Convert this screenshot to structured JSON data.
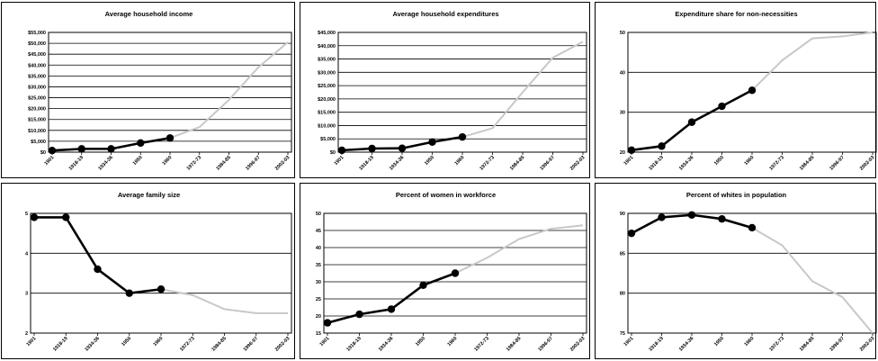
{
  "chart_data": [
    {
      "type": "line",
      "title": "Average household income",
      "categories": [
        "1901",
        "1918-19",
        "1934-36",
        "1950",
        "1960",
        "1972-73",
        "1984-85",
        "1996-97",
        "2002-03"
      ],
      "series": [
        {
          "values": [
            750,
            1500,
            1500,
            4200,
            6500,
            11500,
            24000,
            39000,
            50500
          ]
        }
      ],
      "ylim": [
        0,
        55000
      ],
      "yticks": [
        "$0",
        "$5,000",
        "$10,000",
        "$15,000",
        "$20,000",
        "$25,000",
        "$30,000",
        "$35,000",
        "$40,000",
        "$45,000",
        "$50,000",
        "$55,000"
      ],
      "dark_points": 5,
      "grid": true
    },
    {
      "type": "line",
      "title": "Average household expenditures",
      "categories": [
        "1901",
        "1918-19",
        "1934-36",
        "1950",
        "1960",
        "1972-73",
        "1984-85",
        "1996-97",
        "2002-03"
      ],
      "series": [
        {
          "values": [
            700,
            1350,
            1450,
            3800,
            5700,
            9000,
            22500,
            35500,
            41500
          ]
        }
      ],
      "ylim": [
        0,
        45000
      ],
      "yticks": [
        "$0",
        "$5,000",
        "$10,000",
        "$15,000",
        "$20,000",
        "$25,000",
        "$30,000",
        "$35,000",
        "$40,000",
        "$45,000"
      ],
      "dark_points": 5,
      "grid": true
    },
    {
      "type": "line",
      "title": "Expenditure share for non-necessities",
      "categories": [
        "1901",
        "1918-19",
        "1934-36",
        "1950",
        "1960",
        "1972-73",
        "1984-85",
        "1996-97",
        "2002-03"
      ],
      "series": [
        {
          "values": [
            20.5,
            21.5,
            27.5,
            31.5,
            35.5,
            43,
            48.5,
            49,
            50
          ]
        }
      ],
      "ylim": [
        20,
        50
      ],
      "yticks": [
        "20",
        "30",
        "40",
        "50"
      ],
      "dark_points": 5,
      "grid": true
    },
    {
      "type": "line",
      "title": "Average family size",
      "categories": [
        "1901",
        "1918-19",
        "1934-36",
        "1950",
        "1960",
        "1972-73",
        "1984-85",
        "1996-97",
        "2002-03"
      ],
      "series": [
        {
          "values": [
            4.9,
            4.9,
            3.6,
            3.0,
            3.1,
            2.95,
            2.6,
            2.5,
            2.5
          ]
        }
      ],
      "ylim": [
        2,
        5
      ],
      "yticks": [
        "2",
        "3",
        "4",
        "5"
      ],
      "dark_points": 5,
      "grid": true
    },
    {
      "type": "line",
      "title": "Percent of women in workforce",
      "categories": [
        "1901",
        "1918-19",
        "1934-36",
        "1950",
        "1960",
        "1972-73",
        "1984-85",
        "1996-97",
        "2002-03"
      ],
      "series": [
        {
          "values": [
            18,
            20.5,
            22,
            29,
            32.5,
            37,
            42.5,
            45.5,
            46.5
          ]
        }
      ],
      "ylim": [
        15,
        50
      ],
      "yticks": [
        "15",
        "20",
        "25",
        "30",
        "35",
        "40",
        "45",
        "50"
      ],
      "dark_points": 5,
      "grid": true
    },
    {
      "type": "line",
      "title": "Percent of whites in population",
      "categories": [
        "1901",
        "1918-19",
        "1934-36",
        "1950",
        "1960",
        "1972-73",
        "1984-85",
        "1996-97",
        "2002-03"
      ],
      "series": [
        {
          "values": [
            87.5,
            89.5,
            89.8,
            89.3,
            88.2,
            86,
            81.5,
            79.5,
            75
          ]
        }
      ],
      "ylim": [
        75,
        90
      ],
      "yticks": [
        "75",
        "80",
        "85",
        "90"
      ],
      "dark_points": 5,
      "grid": true
    }
  ],
  "colors": {
    "dark_line": "#000000",
    "light_line": "#c8c8c8",
    "grid": "#000000",
    "frame": "#000000"
  }
}
